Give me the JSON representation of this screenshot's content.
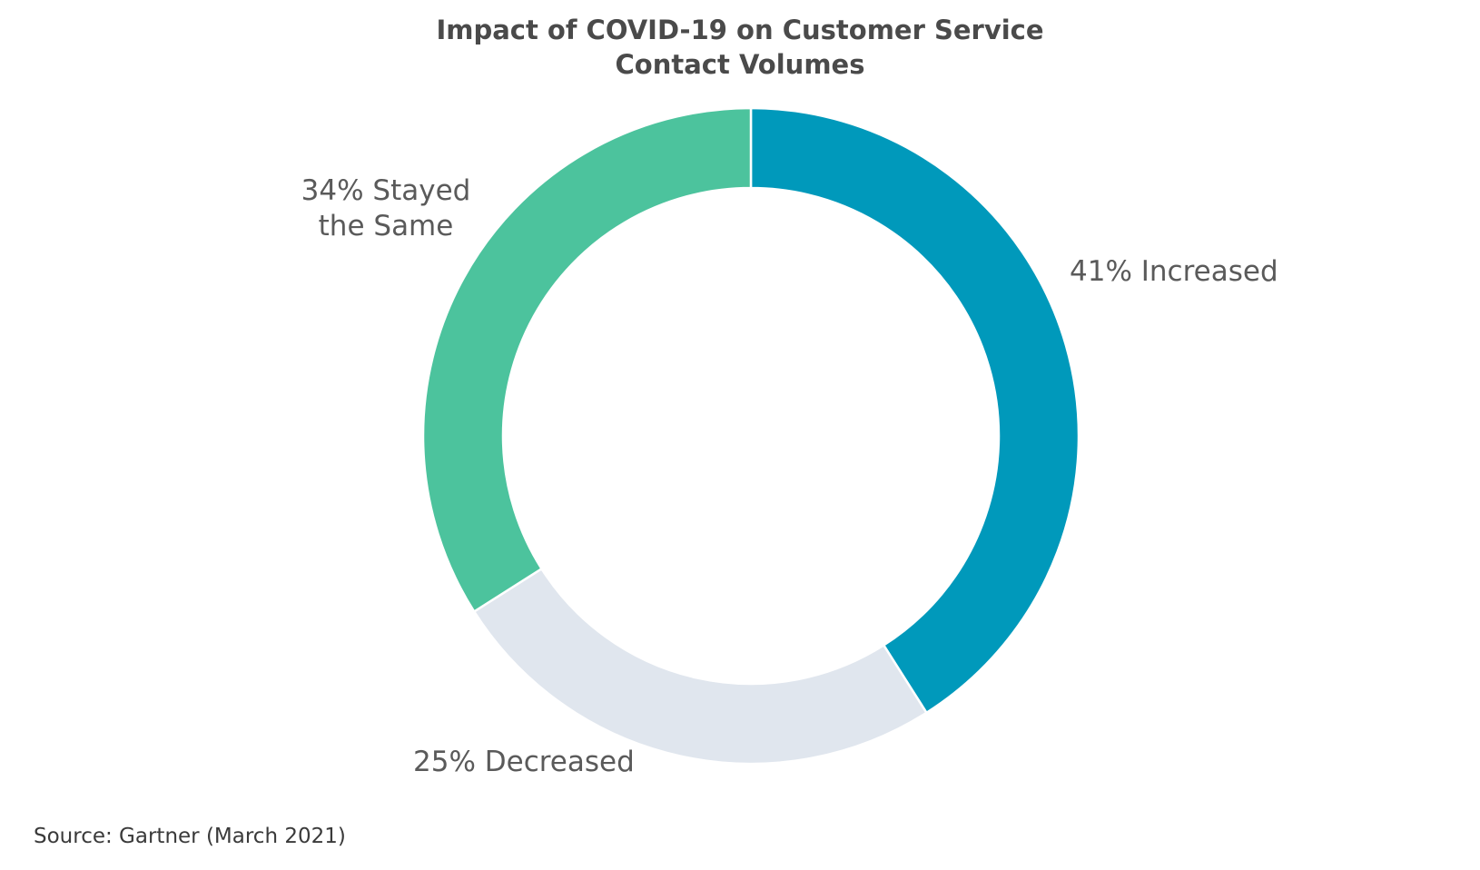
{
  "chart_data": {
    "type": "pie",
    "donut": true,
    "title": [
      "Impact of COVID-19 on Customer Service",
      "Contact Volumes"
    ],
    "slices": [
      {
        "label": [
          "41% Increased"
        ],
        "value": 41,
        "color": "#0099bb"
      },
      {
        "label": [
          "25% Decreased"
        ],
        "value": 25,
        "color": "#e0e6ee"
      },
      {
        "label": [
          "34% Stayed",
          "the Same"
        ],
        "value": 34,
        "color": "#4cc39d"
      }
    ],
    "source": "Source: Gartner (March 2021)"
  }
}
